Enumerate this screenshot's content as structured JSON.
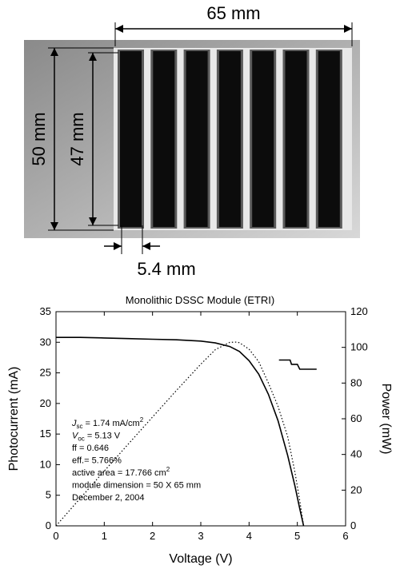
{
  "figure": {
    "dimensions": {
      "width_label": "65 mm",
      "outer_height_label": "50 mm",
      "inner_height_label": "47 mm",
      "cell_width_label": "5.4 mm"
    },
    "module_stripes": 7
  },
  "chart_data": {
    "type": "line",
    "title": "Monolithic DSSC Module (ETRI)",
    "xlabel": "Voltage (V)",
    "ylabel": "Photocurrent (mA)",
    "y2label": "Power (mW)",
    "xlim": [
      0,
      6
    ],
    "ylim": [
      0,
      35
    ],
    "y2lim": [
      0,
      120
    ],
    "x_ticks": [
      "0",
      "1",
      "2",
      "3",
      "4",
      "5",
      "6"
    ],
    "y_ticks": [
      "0",
      "5",
      "10",
      "15",
      "20",
      "25",
      "30",
      "35"
    ],
    "y2_ticks": [
      "0",
      "20",
      "40",
      "60",
      "80",
      "100",
      "120"
    ],
    "grid": false,
    "series": [
      {
        "axis": "left",
        "style": "solid",
        "x": [
          0,
          0.5,
          1,
          1.5,
          2,
          2.5,
          3,
          3.3,
          3.6,
          3.8,
          4.0,
          4.2,
          4.4,
          4.6,
          4.8,
          4.95,
          5.05,
          5.13
        ],
        "y": [
          30.8,
          30.8,
          30.7,
          30.6,
          30.5,
          30.4,
          30.2,
          29.9,
          29.3,
          28.5,
          27.0,
          24.8,
          21.5,
          17.2,
          11.5,
          6.5,
          2.8,
          0
        ]
      },
      {
        "axis": "right",
        "style": "dotted",
        "x": [
          0,
          0.5,
          1,
          1.5,
          2,
          2.5,
          3,
          3.3,
          3.6,
          3.75,
          3.8,
          4.0,
          4.2,
          4.4,
          4.6,
          4.8,
          4.95,
          5.05,
          5.13
        ],
        "y": [
          0,
          15.4,
          30.7,
          45.9,
          61.0,
          76.0,
          90.6,
          98.7,
          102.8,
          103.0,
          102.6,
          99.0,
          92.0,
          80.0,
          67.0,
          50.0,
          30.0,
          14.0,
          0
        ]
      },
      {
        "axis": "left",
        "style": "solid",
        "x": [
          4.62,
          4.85,
          4.88,
          5.0,
          5.05,
          5.4
        ],
        "y": [
          27.1,
          27.1,
          26.4,
          26.4,
          25.6,
          25.6
        ]
      }
    ],
    "annotations": [
      {
        "sym": "J",
        "sub": "sc",
        "text": " =   1.74 mA/cm",
        "sup": "2"
      },
      {
        "sym": "V",
        "sub": "oc",
        "text": " =   5.13 V"
      },
      {
        "text": "ff   =   0.646"
      },
      {
        "text": "eff.=   5.766%"
      },
      {
        "text": "active area = 17.766 cm",
        "sup": "2"
      },
      {
        "text": "module dimension = 50 X 65 mm"
      },
      {
        "text": "December 2, 2004"
      }
    ]
  }
}
